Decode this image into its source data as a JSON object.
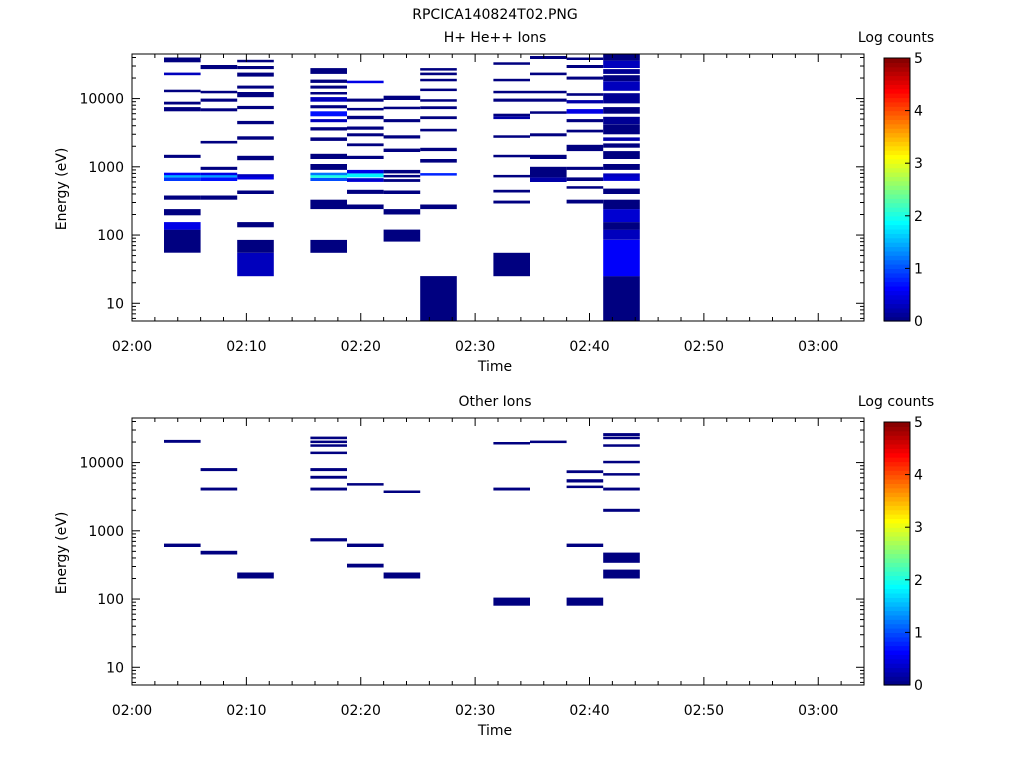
{
  "figure_title": "RPCICA140824T02.PNG",
  "chart_data": [
    {
      "type": "heatmap",
      "title": "H+ He++ Ions",
      "xlabel": "Time",
      "ylabel": "Energy (eV)",
      "colorbar_label": "Log counts",
      "x_ticks": [
        "02:00",
        "02:10",
        "02:20",
        "02:30",
        "02:40",
        "02:50",
        "03:00"
      ],
      "y_ticks": [
        "10",
        "100",
        "1000",
        "10000"
      ],
      "colorbar_ticks": [
        "0",
        "1",
        "2",
        "3",
        "4",
        "5"
      ],
      "y_scale": "log",
      "x_range_minutes": [
        0,
        64
      ],
      "y_range": [
        5.5,
        45000
      ],
      "colorscale": "jet",
      "z_range": [
        0,
        5
      ],
      "cells": [
        {
          "t0": 2.8,
          "t1": 6.0,
          "e": [
            [
              55,
              120,
              0
            ],
            [
              120,
              155,
              0.5
            ],
            [
              195,
              240,
              0
            ],
            [
              330,
              380,
              0
            ],
            [
              620,
              700,
              0.9
            ],
            [
              700,
              760,
              1.5
            ],
            [
              760,
              820,
              0.6
            ],
            [
              1350,
              1500,
              0
            ],
            [
              6500,
              7500,
              0
            ],
            [
              8200,
              9000,
              0
            ],
            [
              12500,
              13500,
              0
            ],
            [
              22000,
              24000,
              0.3
            ],
            [
              34000,
              40000,
              0
            ]
          ]
        },
        {
          "t0": 6.0,
          "t1": 9.2,
          "e": [
            [
              330,
              380,
              0
            ],
            [
              620,
              700,
              0.7
            ],
            [
              700,
              760,
              1.4
            ],
            [
              760,
              820,
              0.5
            ],
            [
              900,
              1000,
              0
            ],
            [
              2200,
              2400,
              0
            ],
            [
              6500,
              7200,
              0
            ],
            [
              9000,
              10000,
              0
            ],
            [
              12000,
              13000,
              0
            ],
            [
              27000,
              31000,
              0
            ]
          ]
        },
        {
          "t0": 9.2,
          "t1": 12.4,
          "e": [
            [
              25,
              55,
              0.3
            ],
            [
              55,
              85,
              0
            ],
            [
              130,
              155,
              0
            ],
            [
              400,
              450,
              0
            ],
            [
              650,
              720,
              0.5
            ],
            [
              720,
              780,
              0.3
            ],
            [
              1250,
              1450,
              0
            ],
            [
              2500,
              2800,
              0
            ],
            [
              4200,
              4700,
              0
            ],
            [
              7000,
              7800,
              0
            ],
            [
              10500,
              12500,
              0
            ],
            [
              14000,
              15500,
              0
            ],
            [
              21000,
              24000,
              0
            ],
            [
              27000,
              30000,
              0
            ],
            [
              34000,
              37000,
              0
            ]
          ]
        },
        {
          "t0": 15.6,
          "t1": 18.8,
          "e": [
            [
              55,
              85,
              0
            ],
            [
              240,
              330,
              0
            ],
            [
              620,
              690,
              1.0
            ],
            [
              690,
              760,
              2.0
            ],
            [
              760,
              820,
              1.2
            ],
            [
              900,
              1100,
              0
            ],
            [
              1300,
              1550,
              0
            ],
            [
              2400,
              2700,
              0
            ],
            [
              3400,
              3800,
              0
            ],
            [
              4500,
              5000,
              0.3
            ],
            [
              5500,
              6500,
              0.7
            ],
            [
              7200,
              8000,
              0
            ],
            [
              9000,
              10500,
              0.3
            ],
            [
              11500,
              12500,
              0
            ],
            [
              14000,
              15500,
              0
            ],
            [
              17000,
              19000,
              0
            ],
            [
              23000,
              28000,
              0
            ]
          ]
        },
        {
          "t0": 18.8,
          "t1": 22.0,
          "e": [
            [
              240,
              280,
              0
            ],
            [
              400,
              460,
              0
            ],
            [
              600,
              680,
              0.4
            ],
            [
              700,
              800,
              1.8
            ],
            [
              800,
              900,
              0.5
            ],
            [
              1300,
              1450,
              0
            ],
            [
              2000,
              2200,
              0
            ],
            [
              2800,
              3100,
              0
            ],
            [
              3500,
              3900,
              0
            ],
            [
              5000,
              5600,
              0
            ],
            [
              6700,
              7300,
              0
            ],
            [
              9000,
              10000,
              0
            ],
            [
              17500,
              18300,
              0.5
            ]
          ]
        },
        {
          "t0": 22.0,
          "t1": 25.2,
          "e": [
            [
              80,
              120,
              0
            ],
            [
              200,
              240,
              0
            ],
            [
              400,
              450,
              0
            ],
            [
              600,
              660,
              0
            ],
            [
              700,
              760,
              0
            ],
            [
              800,
              900,
              0
            ],
            [
              1650,
              1850,
              0
            ],
            [
              2600,
              2900,
              0
            ],
            [
              4500,
              5000,
              0
            ],
            [
              7000,
              7600,
              0
            ],
            [
              9500,
              11000,
              0
            ]
          ]
        },
        {
          "t0": 25.2,
          "t1": 28.4,
          "e": [
            [
              5.5,
              25,
              0
            ],
            [
              240,
              280,
              0
            ],
            [
              750,
              810,
              0.8
            ],
            [
              1150,
              1300,
              0
            ],
            [
              1700,
              1900,
              0
            ],
            [
              3300,
              3600,
              0
            ],
            [
              5000,
              5500,
              0
            ],
            [
              7000,
              7700,
              0
            ],
            [
              9000,
              9800,
              0
            ],
            [
              13000,
              14000,
              0
            ],
            [
              18000,
              19500,
              0
            ],
            [
              22000,
              24000,
              0
            ],
            [
              26000,
              28000,
              0
            ]
          ]
        },
        {
          "t0": 31.6,
          "t1": 34.8,
          "e": [
            [
              25,
              55,
              0
            ],
            [
              290,
              320,
              0
            ],
            [
              420,
              460,
              0
            ],
            [
              700,
              760,
              0
            ],
            [
              1400,
              1500,
              0
            ],
            [
              2700,
              2900,
              0
            ],
            [
              5000,
              5500,
              0.2
            ],
            [
              5500,
              6000,
              0
            ],
            [
              9000,
              10000,
              0
            ],
            [
              12000,
              13000,
              0
            ],
            [
              18000,
              19500,
              0
            ],
            [
              32000,
              34000,
              0
            ]
          ]
        },
        {
          "t0": 34.8,
          "t1": 38.0,
          "e": [
            [
              600,
              700,
              0.2
            ],
            [
              700,
              1000,
              0
            ],
            [
              1300,
              1500,
              0
            ],
            [
              2800,
              3100,
              0
            ],
            [
              6000,
              6500,
              0
            ],
            [
              9000,
              10000,
              0
            ],
            [
              12000,
              13000,
              0
            ],
            [
              22000,
              24000,
              0
            ],
            [
              38000,
              42000,
              0
            ]
          ]
        },
        {
          "t0": 38.0,
          "t1": 41.2,
          "e": [
            [
              290,
              330,
              0
            ],
            [
              480,
              520,
              0
            ],
            [
              620,
              700,
              0
            ],
            [
              900,
              1000,
              0
            ],
            [
              1700,
              2100,
              0
            ],
            [
              3200,
              3500,
              0
            ],
            [
              4500,
              5000,
              0
            ],
            [
              6000,
              7000,
              0.5
            ],
            [
              8500,
              9500,
              0.2
            ],
            [
              11000,
              12000,
              0
            ],
            [
              19000,
              21000,
              0
            ],
            [
              28000,
              31000,
              0
            ],
            [
              37000,
              40000,
              0
            ]
          ]
        },
        {
          "t0": 41.2,
          "t1": 44.4,
          "e": [
            [
              5.5,
              25,
              0
            ],
            [
              25,
              85,
              0.6
            ],
            [
              85,
              120,
              0.3
            ],
            [
              120,
              155,
              0
            ],
            [
              155,
              240,
              0.4
            ],
            [
              240,
              330,
              0
            ],
            [
              400,
              480,
              0
            ],
            [
              620,
              720,
              0.4
            ],
            [
              720,
              800,
              0.3
            ],
            [
              900,
              1100,
              0
            ],
            [
              1300,
              1700,
              0
            ],
            [
              1900,
              2200,
              0
            ],
            [
              2400,
              2700,
              0.2
            ],
            [
              3000,
              4200,
              0
            ],
            [
              4200,
              5400,
              0.1
            ],
            [
              6000,
              7500,
              0
            ],
            [
              8500,
              12000,
              0.1
            ],
            [
              13000,
              18000,
              0.3
            ],
            [
              18000,
              22000,
              0
            ],
            [
              23000,
              27000,
              0.1
            ],
            [
              28000,
              36000,
              0.3
            ],
            [
              36000,
              45000,
              0
            ]
          ]
        }
      ]
    },
    {
      "type": "heatmap",
      "title": "Other Ions",
      "xlabel": "Time",
      "ylabel": "Energy (eV)",
      "colorbar_label": "Log counts",
      "x_ticks": [
        "02:00",
        "02:10",
        "02:20",
        "02:30",
        "02:40",
        "02:50",
        "03:00"
      ],
      "y_ticks": [
        "10",
        "100",
        "1000",
        "10000"
      ],
      "colorbar_ticks": [
        "0",
        "1",
        "2",
        "3",
        "4",
        "5"
      ],
      "y_scale": "log",
      "x_range_minutes": [
        0,
        64
      ],
      "y_range": [
        5.5,
        45000
      ],
      "colorscale": "jet",
      "z_range": [
        0,
        5
      ],
      "cells": [
        {
          "t0": 2.8,
          "t1": 6.0,
          "e": [
            [
              580,
              650,
              0
            ],
            [
              19500,
              21500,
              0
            ]
          ]
        },
        {
          "t0": 6.0,
          "t1": 9.2,
          "e": [
            [
              450,
              510,
              0
            ],
            [
              3900,
              4300,
              0
            ],
            [
              7500,
              8300,
              0
            ]
          ]
        },
        {
          "t0": 9.2,
          "t1": 12.4,
          "e": [
            [
              200,
              245,
              0
            ]
          ]
        },
        {
          "t0": 15.6,
          "t1": 18.8,
          "e": [
            [
              700,
              780,
              0
            ],
            [
              3900,
              4300,
              0
            ],
            [
              5800,
              6400,
              0
            ],
            [
              7500,
              8300,
              0
            ],
            [
              13500,
              14500,
              0
            ],
            [
              17000,
              18500,
              0
            ],
            [
              19500,
              21000,
              0
            ],
            [
              22000,
              24000,
              0
            ]
          ]
        },
        {
          "t0": 18.8,
          "t1": 22.0,
          "e": [
            [
              290,
              330,
              0
            ],
            [
              580,
              650,
              0
            ],
            [
              4600,
              5000,
              0
            ]
          ]
        },
        {
          "t0": 22.0,
          "t1": 25.2,
          "e": [
            [
              200,
              245,
              0
            ],
            [
              3700,
              3900,
              0
            ]
          ]
        },
        {
          "t0": 31.6,
          "t1": 34.8,
          "e": [
            [
              80,
              105,
              0
            ],
            [
              3900,
              4300,
              0
            ],
            [
              18500,
              20000,
              0
            ]
          ]
        },
        {
          "t0": 34.8,
          "t1": 38.0,
          "e": [
            [
              19500,
              21000,
              0
            ]
          ]
        },
        {
          "t0": 38.0,
          "t1": 41.2,
          "e": [
            [
              80,
              105,
              0
            ],
            [
              580,
              650,
              0
            ],
            [
              4300,
              4600,
              0
            ],
            [
              5100,
              5700,
              0
            ],
            [
              7000,
              7700,
              0
            ]
          ]
        },
        {
          "t0": 41.2,
          "t1": 44.4,
          "e": [
            [
              200,
              270,
              0
            ],
            [
              340,
              480,
              0
            ],
            [
              1900,
              2100,
              0
            ],
            [
              3900,
              4300,
              0
            ],
            [
              6500,
              7000,
              0
            ],
            [
              10000,
              10600,
              0
            ],
            [
              17000,
              18500,
              0
            ],
            [
              22000,
              24000,
              0
            ],
            [
              24500,
              27000,
              0
            ]
          ]
        }
      ]
    }
  ]
}
